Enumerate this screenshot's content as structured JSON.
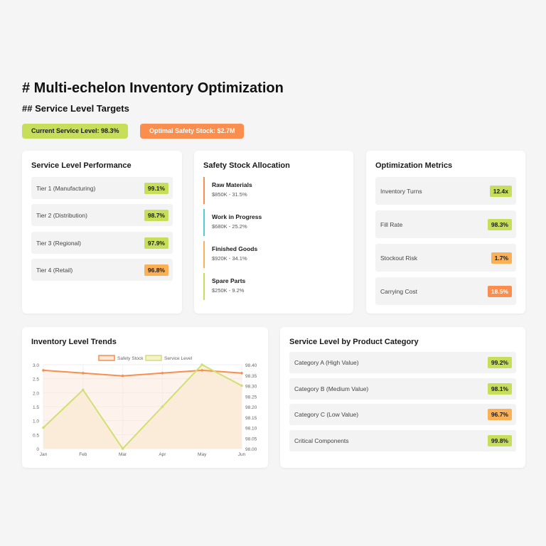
{
  "header": {
    "title": "# Multi-echelon Inventory Optimization",
    "subtitle": "## Service Level Targets",
    "badges": [
      {
        "label": "Current Service Level: 98.3%"
      },
      {
        "label": "Optimal Safety Stock: $2.7M"
      }
    ]
  },
  "service_level_performance": {
    "title": "Service Level Performance",
    "rows": [
      {
        "label": "Tier 1 (Manufacturing)",
        "value": "99.1%"
      },
      {
        "label": "Tier 2 (Distribution)",
        "value": "98.7%"
      },
      {
        "label": "Tier 3 (Regional)",
        "value": "97.9%"
      },
      {
        "label": "Tier 4 (Retail)",
        "value": "96.8%"
      }
    ]
  },
  "safety_stock_allocation": {
    "title": "Safety Stock Allocation",
    "items": [
      {
        "name": "Raw Materials",
        "detail": "$850K - 31.5%",
        "color": "#f98e4f"
      },
      {
        "name": "Work in Progress",
        "detail": "$680K - 25.2%",
        "color": "#4ecdd6"
      },
      {
        "name": "Finished Goods",
        "detail": "$920K - 34.1%",
        "color": "#f9b056"
      },
      {
        "name": "Spare Parts",
        "detail": "$250K - 9.2%",
        "color": "#c6de5a"
      }
    ]
  },
  "optimization_metrics": {
    "title": "Optimization Metrics",
    "rows": [
      {
        "label": "Inventory Turns",
        "value": "12.4x"
      },
      {
        "label": "Fill Rate",
        "value": "98.3%"
      },
      {
        "label": "Stockout Risk",
        "value": "1.7%"
      },
      {
        "label": "Carrying Cost",
        "value": "18.5%"
      }
    ]
  },
  "inventory_trends": {
    "title": "Inventory Level Trends"
  },
  "chart_data": {
    "type": "line",
    "x": [
      "Jan",
      "Feb",
      "Mar",
      "Apr",
      "May",
      "Jun"
    ],
    "series": [
      {
        "name": "Safety Stock",
        "axis": "left",
        "color": "#f98e4f",
        "fill": "#fde8dc",
        "values": [
          2.8,
          2.7,
          2.6,
          2.7,
          2.8,
          2.7
        ]
      },
      {
        "name": "Service Level",
        "axis": "right",
        "color": "#cfe070",
        "fill": "#f7f1d2",
        "values": [
          98.1,
          98.28,
          98.0,
          98.2,
          98.4,
          98.3
        ]
      }
    ],
    "y_left": {
      "min": 0,
      "max": 3.0,
      "ticks": [
        "0",
        "0.5",
        "1.0",
        "1.5",
        "2.0",
        "2.5",
        "3.0"
      ]
    },
    "y_right": {
      "min": 98.0,
      "max": 98.4,
      "ticks": [
        "98.00",
        "98.05",
        "98.10",
        "98.15",
        "98.20",
        "98.25",
        "98.30",
        "98.35",
        "98.40"
      ]
    },
    "legend": "top"
  },
  "service_by_category": {
    "title": "Service Level by Product Category",
    "rows": [
      {
        "label": "Category A (High Value)",
        "value": "99.2%"
      },
      {
        "label": "Category B (Medium Value)",
        "value": "98.1%"
      },
      {
        "label": "Category C (Low Value)",
        "value": "96.7%"
      },
      {
        "label": "Critical Components",
        "value": "99.8%"
      }
    ]
  }
}
